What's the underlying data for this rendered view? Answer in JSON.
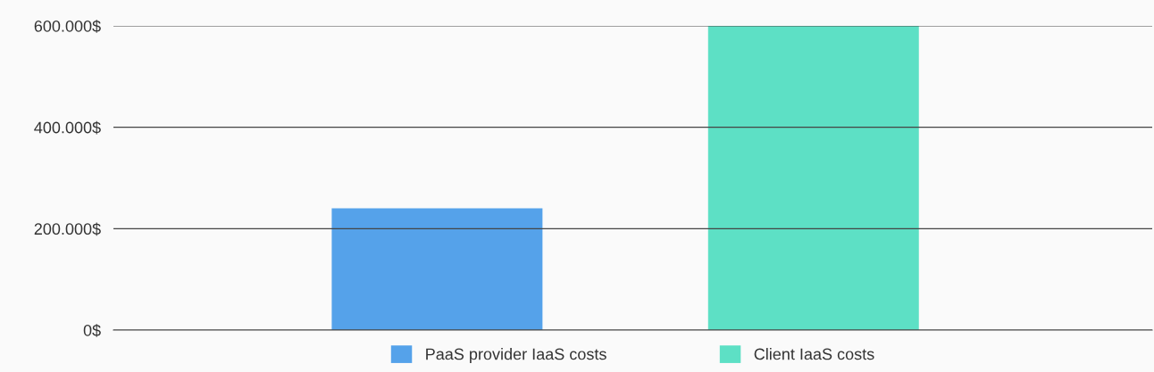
{
  "chart_data": {
    "type": "bar",
    "categories": [
      null,
      null
    ],
    "series": [
      {
        "name": "PaaS provider IaaS costs",
        "color": "#55a2ea",
        "values": [
          240000,
          null
        ]
      },
      {
        "name": "Client IaaS costs",
        "color": "#5de0c5",
        "values": [
          null,
          600000
        ]
      }
    ],
    "ylim": [
      0,
      600000
    ],
    "yticks": [
      {
        "value": 0,
        "label": "0$"
      },
      {
        "value": 200000,
        "label": "200.000$"
      },
      {
        "value": 400000,
        "label": "400.000$"
      },
      {
        "value": 600000,
        "label": "600.000$"
      }
    ],
    "grid": "y",
    "legend": "bottom"
  }
}
